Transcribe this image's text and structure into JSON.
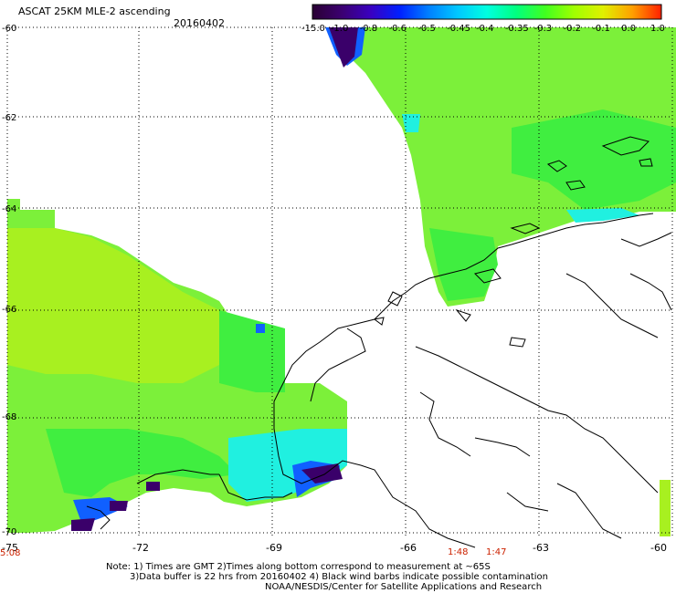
{
  "header": {
    "title": "ASCAT 25KM MLE-2 ascending",
    "date": "20160402"
  },
  "colorbar": {
    "labels": [
      "-15.0",
      "-1.0",
      "-0.8",
      "-0.6",
      "-0.5",
      "-0.45",
      "-0.4",
      "-0.35",
      "-0.3",
      "-0.2",
      "-0.1",
      "0.0",
      "1.0"
    ],
    "colors": [
      "#2a0033",
      "#3b0070",
      "#3a00c0",
      "#0020ff",
      "#0080ff",
      "#00c8ff",
      "#00ffe0",
      "#00ff80",
      "#40ff20",
      "#a0ff00",
      "#e0f000",
      "#ffa000",
      "#ff2000"
    ]
  },
  "axes": {
    "lat_labels": [
      "-60",
      "-62",
      "-64",
      "-66",
      "-68",
      "-70"
    ],
    "lon_labels": [
      "-75",
      "-72",
      "-69",
      "-66",
      "-63",
      "-60"
    ]
  },
  "times": {
    "corner": "5:08",
    "t1": "1:48",
    "t2": "1:47"
  },
  "notes": {
    "line1": "Note: 1) Times are GMT 2)Times along bottom correspond to measurement at ~65S",
    "line2": "3)Data buffer is 22 hrs from 20160402 4) Black wind barbs indicate possible contamination",
    "line3": "NOAA/NESDIS/Center for Satellite Applications and Research"
  },
  "palette": {
    "field_main": "#7cf03a",
    "field_lime": "#a8f020",
    "field_green": "#40ee40",
    "field_cyan": "#20f0e0",
    "field_blue": "#1060ff",
    "field_purple": "#3a006a",
    "coast": "#000000"
  }
}
